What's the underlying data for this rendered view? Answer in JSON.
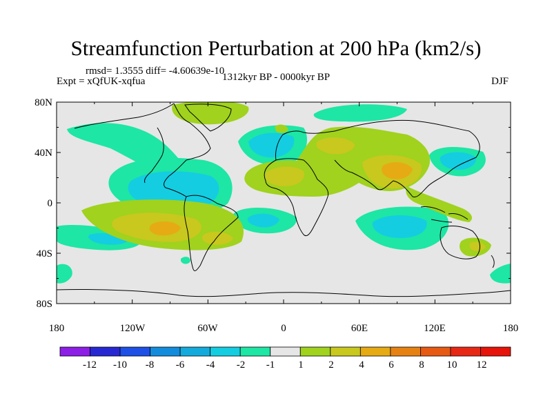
{
  "title": "Streamfunction Perturbation at 200 hPa (km2/s)",
  "stats_text": "rmsd= 1.3555  diff= -4.60639e-10",
  "experiment_text": "Expt = xQfUK-xqfua",
  "period_text": "1312kyr BP - 0000kyr BP",
  "season": "DJF",
  "map": {
    "x_ticks": [
      "180",
      "120W",
      "60W",
      "0",
      "60E",
      "120E",
      "180"
    ],
    "y_ticks": [
      "80N",
      "40N",
      "0",
      "40S",
      "80S"
    ],
    "background_color": "#e6e6e6"
  },
  "colorbar": {
    "labels": [
      "-12",
      "-10",
      "-8",
      "-6",
      "-4",
      "-2",
      "-1",
      "1",
      "2",
      "4",
      "6",
      "8",
      "10",
      "12"
    ],
    "colors": [
      "#8c1ee6",
      "#2828d2",
      "#1e50e6",
      "#148cdc",
      "#14aadc",
      "#14cde1",
      "#1ee6a5",
      "#e6e6e6",
      "#a0d21e",
      "#c8c81e",
      "#e6aa14",
      "#e68214",
      "#e65a14",
      "#e62814",
      "#e6140a"
    ]
  }
}
